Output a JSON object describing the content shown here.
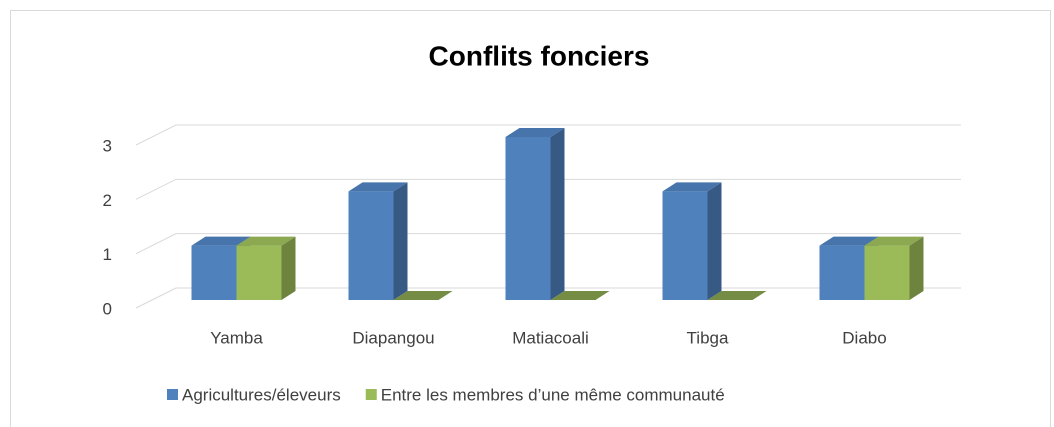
{
  "chart_data": {
    "type": "bar3d",
    "title": "Conflits fonciers",
    "categories": [
      "Yamba",
      "Diapangou",
      "Matiacoali",
      "Tibga",
      "Diabo"
    ],
    "series": [
      {
        "name": "Agricultures/éleveurs",
        "color": "#4f81bd",
        "values": [
          1,
          2,
          3,
          2,
          1
        ]
      },
      {
        "name": "Entre les membres d’une même communauté",
        "color": "#9bbb59",
        "values": [
          1,
          0,
          0,
          0,
          1
        ]
      }
    ],
    "ylim": [
      0,
      3
    ],
    "yticks": [
      0,
      1,
      2,
      3
    ],
    "grid": true,
    "legend": "bottom"
  }
}
